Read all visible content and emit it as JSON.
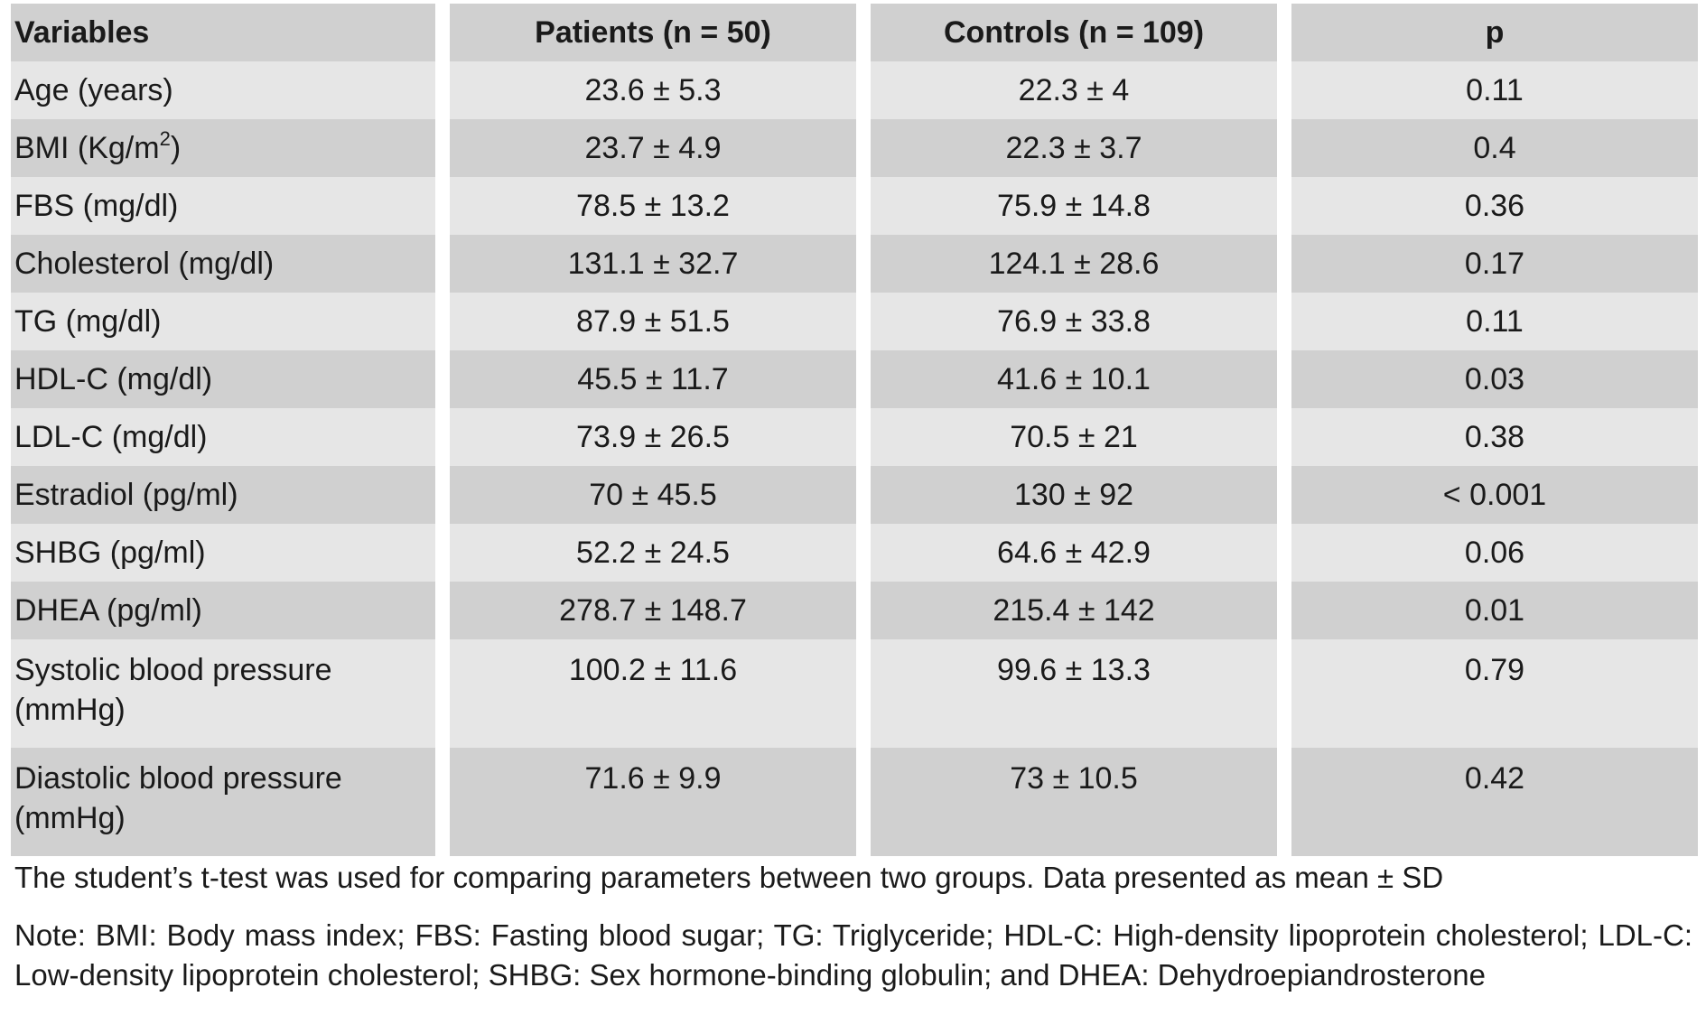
{
  "table": {
    "headers": [
      "Variables",
      "Patients (n = 50)",
      "Controls (n = 109)",
      "p"
    ],
    "rows": [
      {
        "variable": "Age (years)",
        "patients": "23.6 ± 5.3",
        "controls": "22.3 ± 4",
        "p": "0.11"
      },
      {
        "variable": "BMI (Kg/m",
        "variable_sup": "2",
        "variable_after": ")",
        "patients": "23.7 ± 4.9",
        "controls": "22.3 ± 3.7",
        "p": "0.4"
      },
      {
        "variable": "FBS (mg/dl)",
        "patients": "78.5 ± 13.2",
        "controls": "75.9 ± 14.8",
        "p": "0.36"
      },
      {
        "variable": "Cholesterol (mg/dl)",
        "patients": "131.1 ± 32.7",
        "controls": "124.1 ± 28.6",
        "p": "0.17"
      },
      {
        "variable": "TG (mg/dl)",
        "patients": "87.9 ± 51.5",
        "controls": "76.9 ± 33.8",
        "p": "0.11"
      },
      {
        "variable": "HDL-C (mg/dl)",
        "patients": "45.5 ± 11.7",
        "controls": "41.6 ± 10.1",
        "p": "0.03"
      },
      {
        "variable": "LDL-C (mg/dl)",
        "patients": "73.9 ± 26.5",
        "controls": "70.5 ± 21",
        "p": "0.38"
      },
      {
        "variable": "Estradiol (pg/ml)",
        "patients": "70 ± 45.5",
        "controls": "130 ± 92",
        "p": "< 0.001"
      },
      {
        "variable": "SHBG (pg/ml)",
        "patients": "52.2 ± 24.5",
        "controls": "64.6 ± 42.9",
        "p": "0.06"
      },
      {
        "variable": "DHEA (pg/ml)",
        "patients": "278.7 ± 148.7",
        "controls": "215.4 ± 142",
        "p": "0.01"
      },
      {
        "variable": "Systolic blood pressure (mmHg)",
        "patients": "100.2 ± 11.6",
        "controls": "99.6 ± 13.3",
        "p": "0.79"
      },
      {
        "variable": "Diastolic blood pressure (mmHg)",
        "patients": "71.6 ± 9.9",
        "controls": "73 ± 10.5",
        "p": "0.42"
      }
    ]
  },
  "footnote": "The student’s t-test was used for comparing parameters between two groups. Data presented as mean ± SD",
  "note": "Note: BMI: Body mass index; FBS: Fasting blood sugar; TG: Triglyceride; HDL-C: High-density lipoprotein cholesterol; LDL-C: Low-density lipoprotein cholesterol; SHBG: Sex hormone-binding globulin; and DHEA: Dehydroepiandrosterone"
}
